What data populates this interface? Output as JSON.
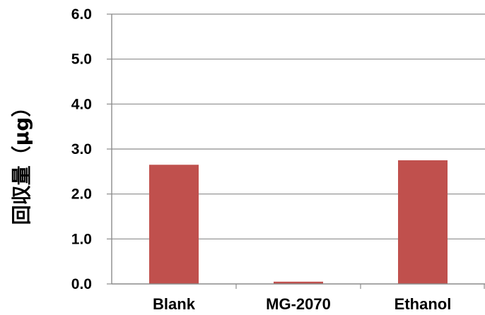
{
  "chart_data": {
    "type": "bar",
    "title": "",
    "xlabel": "",
    "ylabel": "回収量（μg）",
    "categories": [
      "Blank",
      "MG-2070",
      "Ethanol"
    ],
    "values": [
      2.65,
      0.05,
      2.75
    ],
    "ylim": [
      0,
      6
    ],
    "yticks": [
      "0.0",
      "1.0",
      "2.0",
      "3.0",
      "4.0",
      "5.0",
      "6.0"
    ],
    "grid": true,
    "bar_color": "#c0504d",
    "grid_color": "#8c8c8c",
    "axis_color": "#8c8c8c"
  }
}
